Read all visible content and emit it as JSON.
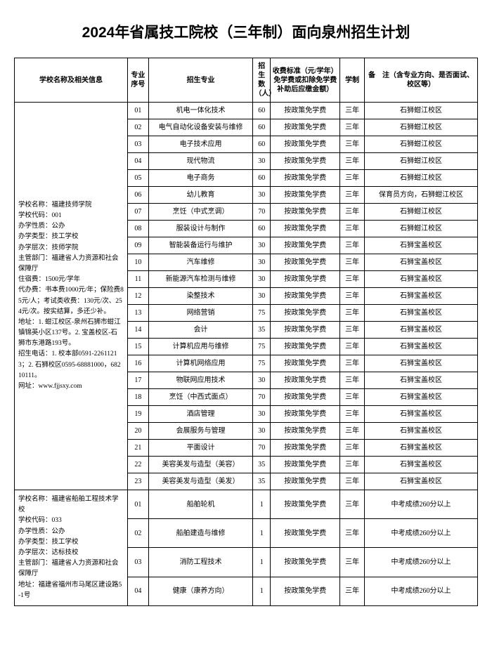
{
  "title": "2024年省属技工院校（三年制）面向泉州招生计划",
  "headers": {
    "school_info": "学校名称及相关信息",
    "seq": "专业序号",
    "major": "招生专业",
    "count": "招生数（人）",
    "fee": "收费标准（元/学年）免学费或扣除免学费补助后应缴金额）",
    "system": "学制",
    "remark": "备　注（含专业方向、是否面试、校区等）"
  },
  "school1_info": "学校名称：福建技师学院\n学校代码：001\n办学性质：公办\n办学类型：技工学校\n办学层次：技师学院\n主管部门：福建省人力资源和社会保障厅\n住宿费：1500元/学年\n代办费：书本费1000元/年；保险费85元/人；考试类收费：130元/次、254元/次。按实结算，多还少补。\n地址：1. 蚶江校区-泉州石狮市蚶江镇锦英小区137号。2. 宝盖校区-石狮市东港路193号。\n招生电话：1. 校本部0591-22611213；2. 石狮校区0595-68881000，68210111。\n网址：www.fjjsxy.com",
  "school2_info": "学校名称：福建省船舶工程技术学校\n学校代码：033\n办学性质：公办\n办学类型：技工学校\n办学层次：达标技校\n主管部门：福建省人力资源和社会保障厅\n地址：福建省福州市马尾区建设路5-1号",
  "rows1": [
    {
      "seq": "01",
      "major": "机电一体化技术",
      "count": "60",
      "fee": "按政策免学费",
      "system": "三年",
      "remark": "石狮蚶江校区"
    },
    {
      "seq": "02",
      "major": "电气自动化设备安装与维修",
      "count": "60",
      "fee": "按政策免学费",
      "system": "三年",
      "remark": "石狮蚶江校区"
    },
    {
      "seq": "03",
      "major": "电子技术应用",
      "count": "60",
      "fee": "按政策免学费",
      "system": "三年",
      "remark": "石狮蚶江校区"
    },
    {
      "seq": "04",
      "major": "现代物流",
      "count": "30",
      "fee": "按政策免学费",
      "system": "三年",
      "remark": "石狮蚶江校区"
    },
    {
      "seq": "05",
      "major": "电子商务",
      "count": "60",
      "fee": "按政策免学费",
      "system": "三年",
      "remark": "石狮蚶江校区"
    },
    {
      "seq": "06",
      "major": "幼儿教育",
      "count": "30",
      "fee": "按政策免学费",
      "system": "三年",
      "remark": "保育员方向，石狮蚶江校区"
    },
    {
      "seq": "07",
      "major": "烹饪（中式烹调）",
      "count": "70",
      "fee": "按政策免学费",
      "system": "三年",
      "remark": "石狮蚶江校区"
    },
    {
      "seq": "08",
      "major": "服装设计与制作",
      "count": "60",
      "fee": "按政策免学费",
      "system": "三年",
      "remark": "石狮蚶江校区"
    },
    {
      "seq": "09",
      "major": "智能装备运行与维护",
      "count": "30",
      "fee": "按政策免学费",
      "system": "三年",
      "remark": "石狮宝盖校区"
    },
    {
      "seq": "10",
      "major": "汽车维修",
      "count": "30",
      "fee": "按政策免学费",
      "system": "三年",
      "remark": "石狮宝盖校区"
    },
    {
      "seq": "11",
      "major": "新能源汽车检测与维修",
      "count": "30",
      "fee": "按政策免学费",
      "system": "三年",
      "remark": "石狮宝盖校区"
    },
    {
      "seq": "12",
      "major": "染整技术",
      "count": "30",
      "fee": "按政策免学费",
      "system": "三年",
      "remark": "石狮宝盖校区"
    },
    {
      "seq": "13",
      "major": "网络营销",
      "count": "75",
      "fee": "按政策免学费",
      "system": "三年",
      "remark": "石狮宝盖校区"
    },
    {
      "seq": "14",
      "major": "会计",
      "count": "35",
      "fee": "按政策免学费",
      "system": "三年",
      "remark": "石狮宝盖校区"
    },
    {
      "seq": "15",
      "major": "计算机应用与维修",
      "count": "75",
      "fee": "按政策免学费",
      "system": "三年",
      "remark": "石狮宝盖校区"
    },
    {
      "seq": "16",
      "major": "计算机网络应用",
      "count": "75",
      "fee": "按政策免学费",
      "system": "三年",
      "remark": "石狮宝盖校区"
    },
    {
      "seq": "17",
      "major": "物联网应用技术",
      "count": "30",
      "fee": "按政策免学费",
      "system": "三年",
      "remark": "石狮宝盖校区"
    },
    {
      "seq": "18",
      "major": "烹饪（中西式面点）",
      "count": "70",
      "fee": "按政策免学费",
      "system": "三年",
      "remark": "石狮宝盖校区"
    },
    {
      "seq": "19",
      "major": "酒店管理",
      "count": "30",
      "fee": "按政策免学费",
      "system": "三年",
      "remark": "石狮宝盖校区"
    },
    {
      "seq": "20",
      "major": "会展服务与管理",
      "count": "30",
      "fee": "按政策免学费",
      "system": "三年",
      "remark": "石狮宝盖校区"
    },
    {
      "seq": "21",
      "major": "平面设计",
      "count": "70",
      "fee": "按政策免学费",
      "system": "三年",
      "remark": "石狮宝盖校区"
    },
    {
      "seq": "22",
      "major": "美容美发与造型（美容）",
      "count": "35",
      "fee": "按政策免学费",
      "system": "三年",
      "remark": "石狮宝盖校区"
    },
    {
      "seq": "23",
      "major": "美容美发与造型（美发）",
      "count": "35",
      "fee": "按政策免学费",
      "system": "三年",
      "remark": "石狮宝盖校区"
    }
  ],
  "rows2": [
    {
      "seq": "01",
      "major": "船舶轮机",
      "count": "1",
      "fee": "按政策免学费",
      "system": "三年",
      "remark": "中考成绩260分以上"
    },
    {
      "seq": "02",
      "major": "船舶建造与维修",
      "count": "1",
      "fee": "按政策免学费",
      "system": "三年",
      "remark": "中考成绩260分以上"
    },
    {
      "seq": "03",
      "major": "消防工程技术",
      "count": "1",
      "fee": "按政策免学费",
      "system": "三年",
      "remark": "中考成绩260分以上"
    },
    {
      "seq": "04",
      "major": "健康（康养方向）",
      "count": "1",
      "fee": "按政策免学费",
      "system": "三年",
      "remark": "中考成绩260分以上"
    }
  ]
}
